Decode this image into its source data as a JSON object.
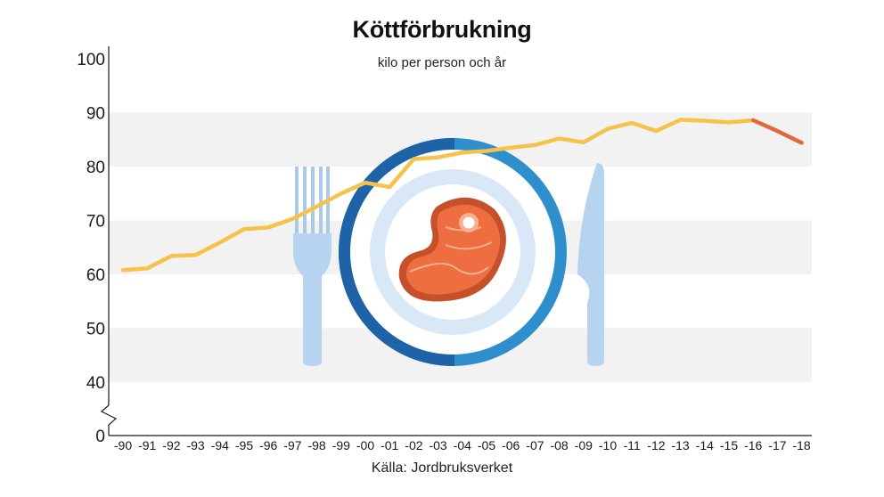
{
  "chart_data": {
    "type": "line",
    "title": "Köttförbrukning",
    "subtitle": "kilo per person och år",
    "source": "Källa: Jordbruksverket",
    "y_ticks": [
      "0",
      "40",
      "50",
      "60",
      "70",
      "80",
      "90",
      "100"
    ],
    "ylim": [
      40,
      100
    ],
    "y_axis_break": true,
    "grid": "alternating horizontal bands",
    "categories": [
      "-90",
      "-91",
      "-92",
      "-93",
      "-94",
      "-95",
      "-96",
      "-97",
      "-98",
      "-99",
      "-00",
      "-01",
      "-02",
      "-03",
      "-04",
      "-05",
      "-06",
      "-07",
      "-08",
      "-09",
      "-10",
      "-11",
      "-12",
      "-13",
      "-14",
      "-15",
      "-16",
      "-17",
      "-18"
    ],
    "series": [
      {
        "color": "#f6c24a",
        "values": [
          60.8,
          61.1,
          63.4,
          63.6,
          65.9,
          68.4,
          68.7,
          70.3,
          72.6,
          75.0,
          77.0,
          76.2,
          81.4,
          81.7,
          82.6,
          82.9,
          83.5,
          84.0,
          85.2,
          84.5,
          87.0,
          88.1,
          86.6,
          88.7,
          88.5,
          88.2,
          88.6,
          null,
          null
        ]
      },
      {
        "color": "#e4663a",
        "values": [
          null,
          null,
          null,
          null,
          null,
          null,
          null,
          null,
          null,
          null,
          null,
          null,
          null,
          null,
          null,
          null,
          null,
          null,
          null,
          null,
          null,
          null,
          null,
          null,
          null,
          null,
          88.6,
          86.6,
          84.4
        ]
      }
    ]
  }
}
